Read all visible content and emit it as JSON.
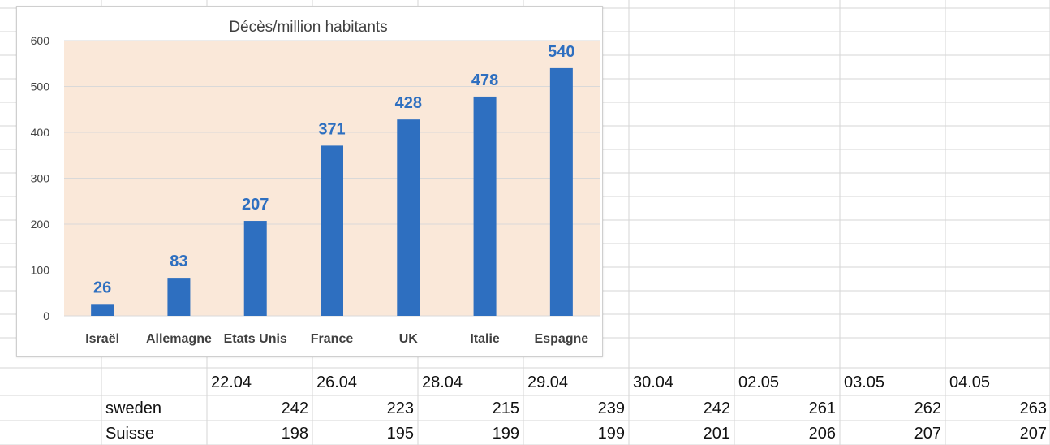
{
  "chart_data": {
    "type": "bar",
    "title": "Décès/million habitants",
    "categories": [
      "Israël",
      "Allemagne",
      "Etats Unis",
      "France",
      "UK",
      "Italie",
      "Espagne"
    ],
    "values": [
      26,
      83,
      207,
      371,
      428,
      478,
      540
    ],
    "yticks": [
      "0",
      "100",
      "200",
      "300",
      "400",
      "500",
      "600"
    ],
    "ylim": [
      0,
      600
    ],
    "grid": true,
    "data_labels": true,
    "bar_color": "#2e6fc0",
    "label_color": "#2e6fc0",
    "plot_background": "#fae8d9"
  },
  "spreadsheet": {
    "dates": [
      "22.04",
      "26.04",
      "28.04",
      "29.04",
      "30.04",
      "02.05",
      "03.05",
      "04.05"
    ],
    "rows": [
      {
        "label": "sweden",
        "values": [
          "242",
          "223",
          "215",
          "239",
          "242",
          "261",
          "262",
          "263"
        ]
      },
      {
        "label": "Suisse",
        "values": [
          "198",
          "195",
          "199",
          "199",
          "201",
          "206",
          "207",
          "207"
        ]
      }
    ]
  }
}
